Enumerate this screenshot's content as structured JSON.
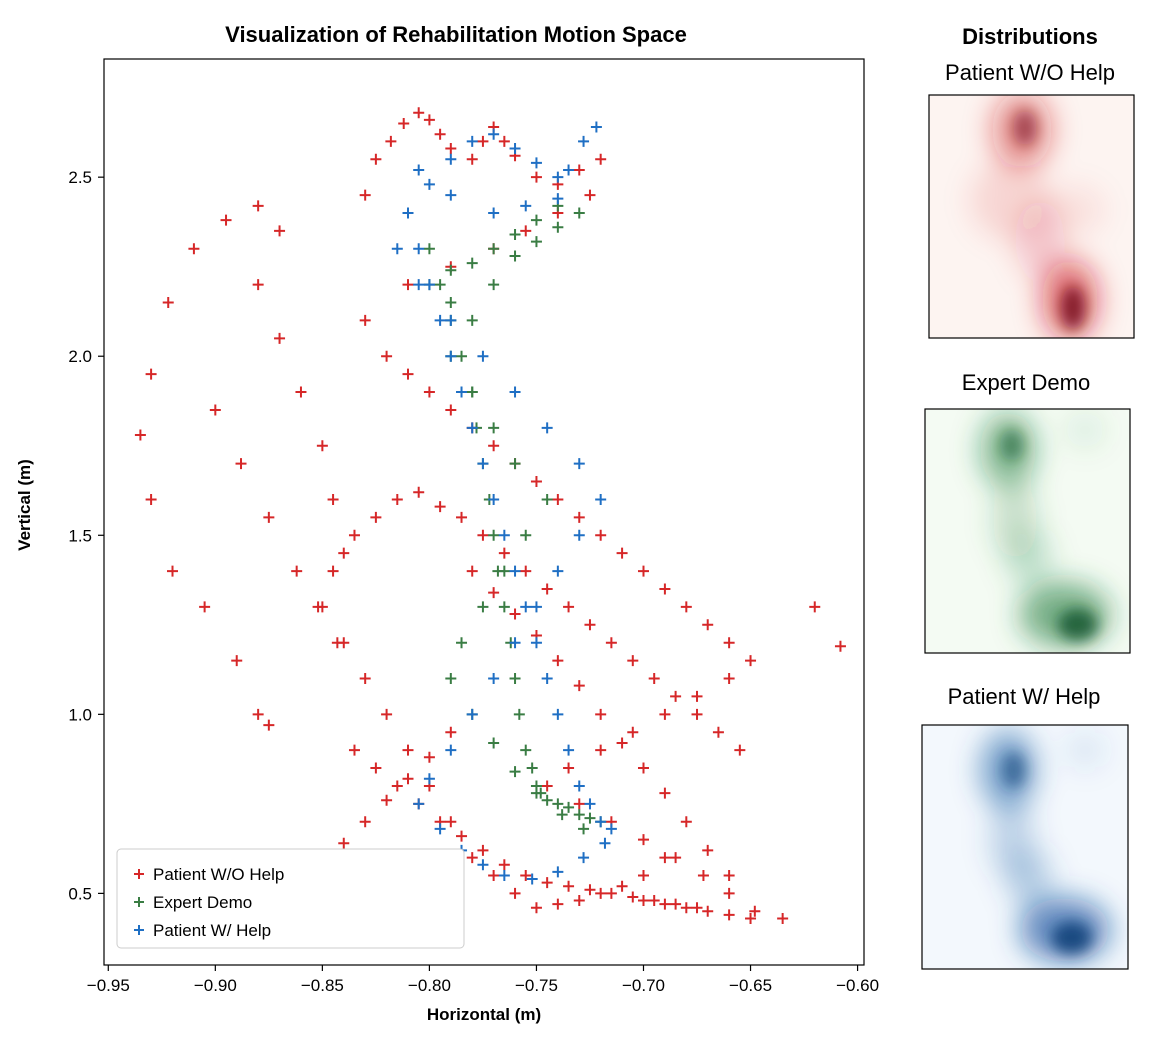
{
  "chart_data": {
    "type": "scatter",
    "title": "Visualization of Rehabilitation Motion Space",
    "xlabel": "Horizontal (m)",
    "ylabel": "Vertical (m)",
    "xlim": [
      -0.952,
      -0.597
    ],
    "ylim": [
      0.3,
      2.83
    ],
    "xticks": [
      -0.95,
      -0.9,
      -0.85,
      -0.8,
      -0.75,
      -0.7,
      -0.65,
      -0.6
    ],
    "xtick_labels": [
      "−0.95",
      "−0.90",
      "−0.85",
      "−0.80",
      "−0.75",
      "−0.70",
      "−0.65",
      "−0.60"
    ],
    "yticks": [
      0.5,
      1.0,
      1.5,
      2.0,
      2.5
    ],
    "ytick_labels": [
      "0.5",
      "1.0",
      "1.5",
      "2.0",
      "2.5"
    ],
    "legend_position": "lower-left",
    "series": [
      {
        "name": "Patient W/O Help",
        "color": "#d62728",
        "marker": "+",
        "x": [
          -0.935,
          -0.93,
          -0.922,
          -0.91,
          -0.895,
          -0.88,
          -0.87,
          -0.93,
          -0.92,
          -0.905,
          -0.89,
          -0.88,
          -0.875,
          -0.9,
          -0.888,
          -0.875,
          -0.862,
          -0.852,
          -0.843,
          -0.88,
          -0.87,
          -0.86,
          -0.85,
          -0.845,
          -0.84,
          -0.83,
          -0.825,
          -0.818,
          -0.812,
          -0.805,
          -0.8,
          -0.795,
          -0.79,
          -0.78,
          -0.775,
          -0.77,
          -0.765,
          -0.76,
          -0.75,
          -0.74,
          -0.73,
          -0.72,
          -0.725,
          -0.74,
          -0.755,
          -0.77,
          -0.79,
          -0.81,
          -0.83,
          -0.82,
          -0.81,
          -0.8,
          -0.79,
          -0.78,
          -0.77,
          -0.76,
          -0.75,
          -0.74,
          -0.73,
          -0.72,
          -0.71,
          -0.7,
          -0.69,
          -0.68,
          -0.67,
          -0.66,
          -0.65,
          -0.66,
          -0.675,
          -0.69,
          -0.705,
          -0.72,
          -0.735,
          -0.745,
          -0.73,
          -0.715,
          -0.7,
          -0.685,
          -0.672,
          -0.66,
          -0.648,
          -0.635,
          -0.62,
          -0.608,
          -0.69,
          -0.7,
          -0.71,
          -0.72,
          -0.73,
          -0.74,
          -0.75,
          -0.76,
          -0.77,
          -0.78,
          -0.79,
          -0.8,
          -0.81,
          -0.82,
          -0.83,
          -0.84,
          -0.85,
          -0.845,
          -0.835,
          -0.825,
          -0.815,
          -0.805,
          -0.795,
          -0.785,
          -0.775,
          -0.765,
          -0.755,
          -0.745,
          -0.735,
          -0.725,
          -0.715,
          -0.705,
          -0.695,
          -0.685,
          -0.675,
          -0.665,
          -0.655,
          -0.7,
          -0.69,
          -0.68,
          -0.67,
          -0.66,
          -0.65,
          -0.66,
          -0.67,
          -0.68,
          -0.69,
          -0.7,
          -0.71,
          -0.72,
          -0.73,
          -0.74,
          -0.75,
          -0.76,
          -0.77,
          -0.78,
          -0.79,
          -0.8,
          -0.81,
          -0.82,
          -0.83,
          -0.84,
          -0.835,
          -0.825,
          -0.815,
          -0.805,
          -0.795,
          -0.785,
          -0.775,
          -0.765,
          -0.755,
          -0.745,
          -0.735,
          -0.725,
          -0.715,
          -0.705,
          -0.695,
          -0.685,
          -0.675
        ],
        "y": [
          1.78,
          1.95,
          2.15,
          2.3,
          2.38,
          2.42,
          2.35,
          1.6,
          1.4,
          1.3,
          1.15,
          1.0,
          0.97,
          1.85,
          1.7,
          1.55,
          1.4,
          1.3,
          1.2,
          2.2,
          2.05,
          1.9,
          1.75,
          1.6,
          1.45,
          2.45,
          2.55,
          2.6,
          2.65,
          2.68,
          2.66,
          2.62,
          2.58,
          2.55,
          2.6,
          2.64,
          2.6,
          2.56,
          2.5,
          2.48,
          2.52,
          2.55,
          2.45,
          2.4,
          2.35,
          2.3,
          2.25,
          2.2,
          2.1,
          2.0,
          1.95,
          1.9,
          1.85,
          1.8,
          1.75,
          1.7,
          1.65,
          1.6,
          1.55,
          1.5,
          1.45,
          1.4,
          1.35,
          1.3,
          1.25,
          1.2,
          1.15,
          1.1,
          1.05,
          1.0,
          0.95,
          0.9,
          0.85,
          0.8,
          0.75,
          0.7,
          0.65,
          0.6,
          0.55,
          0.5,
          0.45,
          0.43,
          1.3,
          1.19,
          0.6,
          0.55,
          0.52,
          0.5,
          0.48,
          0.47,
          0.46,
          0.5,
          0.55,
          0.6,
          0.7,
          0.8,
          0.9,
          1.0,
          1.1,
          1.2,
          1.3,
          1.4,
          1.5,
          1.55,
          1.6,
          1.62,
          1.58,
          1.55,
          1.5,
          1.45,
          1.4,
          1.35,
          1.3,
          1.25,
          1.2,
          1.15,
          1.1,
          1.05,
          1.0,
          0.95,
          0.9,
          0.48,
          0.47,
          0.46,
          0.45,
          0.44,
          0.43,
          0.55,
          0.62,
          0.7,
          0.78,
          0.85,
          0.92,
          1.0,
          1.08,
          1.15,
          1.22,
          1.28,
          1.34,
          1.4,
          0.95,
          0.88,
          0.82,
          0.76,
          0.7,
          0.64,
          0.9,
          0.85,
          0.8,
          0.75,
          0.7,
          0.66,
          0.62,
          0.58,
          0.55,
          0.53,
          0.52,
          0.51,
          0.5,
          0.49,
          0.48,
          0.47,
          0.46
        ]
      },
      {
        "name": "Expert Demo",
        "color": "#3a7d44",
        "marker": "+",
        "x": [
          -0.8,
          -0.795,
          -0.79,
          -0.785,
          -0.78,
          -0.778,
          -0.775,
          -0.772,
          -0.77,
          -0.768,
          -0.765,
          -0.762,
          -0.76,
          -0.758,
          -0.755,
          -0.752,
          -0.75,
          -0.748,
          -0.745,
          -0.74,
          -0.735,
          -0.73,
          -0.725,
          -0.72,
          -0.728,
          -0.738,
          -0.75,
          -0.76,
          -0.77,
          -0.78,
          -0.79,
          -0.785,
          -0.775,
          -0.765,
          -0.755,
          -0.745,
          -0.76,
          -0.77,
          -0.78,
          -0.79,
          -0.78,
          -0.77,
          -0.76,
          -0.75,
          -0.74,
          -0.73,
          -0.74,
          -0.75,
          -0.76,
          -0.77,
          -0.78,
          -0.79,
          -0.8,
          -0.79
        ],
        "y": [
          2.3,
          2.2,
          2.1,
          2.0,
          1.9,
          1.8,
          1.7,
          1.6,
          1.5,
          1.4,
          1.3,
          1.2,
          1.1,
          1.0,
          0.9,
          0.85,
          0.8,
          0.78,
          0.76,
          0.75,
          0.74,
          0.72,
          0.71,
          0.7,
          0.68,
          0.72,
          0.78,
          0.84,
          0.92,
          1.0,
          1.1,
          1.2,
          1.3,
          1.4,
          1.5,
          1.6,
          1.7,
          1.8,
          1.9,
          2.0,
          2.1,
          2.2,
          2.28,
          2.32,
          2.36,
          2.4,
          2.42,
          2.38,
          2.34,
          2.3,
          2.26,
          2.24,
          2.2,
          2.15
        ]
      },
      {
        "name": "Patient W/ Help",
        "color": "#1f6fc4",
        "marker": "+",
        "x": [
          -0.81,
          -0.805,
          -0.8,
          -0.795,
          -0.79,
          -0.785,
          -0.78,
          -0.775,
          -0.77,
          -0.765,
          -0.76,
          -0.755,
          -0.75,
          -0.745,
          -0.74,
          -0.735,
          -0.73,
          -0.725,
          -0.72,
          -0.715,
          -0.718,
          -0.728,
          -0.74,
          -0.752,
          -0.765,
          -0.775,
          -0.785,
          -0.795,
          -0.805,
          -0.8,
          -0.79,
          -0.78,
          -0.77,
          -0.76,
          -0.75,
          -0.74,
          -0.73,
          -0.72,
          -0.73,
          -0.745,
          -0.76,
          -0.775,
          -0.79,
          -0.805,
          -0.815,
          -0.81,
          -0.8,
          -0.79,
          -0.78,
          -0.77,
          -0.76,
          -0.75,
          -0.74,
          -0.735,
          -0.728,
          -0.722,
          -0.74,
          -0.755,
          -0.77,
          -0.79,
          -0.805
        ],
        "y": [
          2.4,
          2.3,
          2.2,
          2.1,
          2.0,
          1.9,
          1.8,
          1.7,
          1.6,
          1.5,
          1.4,
          1.3,
          1.2,
          1.1,
          1.0,
          0.9,
          0.8,
          0.75,
          0.7,
          0.68,
          0.64,
          0.6,
          0.56,
          0.54,
          0.55,
          0.58,
          0.62,
          0.68,
          0.75,
          0.82,
          0.9,
          1.0,
          1.1,
          1.2,
          1.3,
          1.4,
          1.5,
          1.6,
          1.7,
          1.8,
          1.9,
          2.0,
          2.1,
          2.2,
          2.3,
          2.4,
          2.48,
          2.55,
          2.6,
          2.62,
          2.58,
          2.54,
          2.5,
          2.52,
          2.6,
          2.64,
          2.44,
          2.42,
          2.4,
          2.45,
          2.52
        ]
      }
    ]
  },
  "side": {
    "header": "Distributions",
    "panels": [
      {
        "label": "Patient W/O Help",
        "color": "#cb181d",
        "base": "#fdf4f1"
      },
      {
        "label": "Expert Demo",
        "color": "#1b7a3a",
        "base": "#f4fbf3"
      },
      {
        "label": "Patient W/ Help",
        "color": "#0b4f9c",
        "base": "#f3f8fd"
      }
    ]
  }
}
